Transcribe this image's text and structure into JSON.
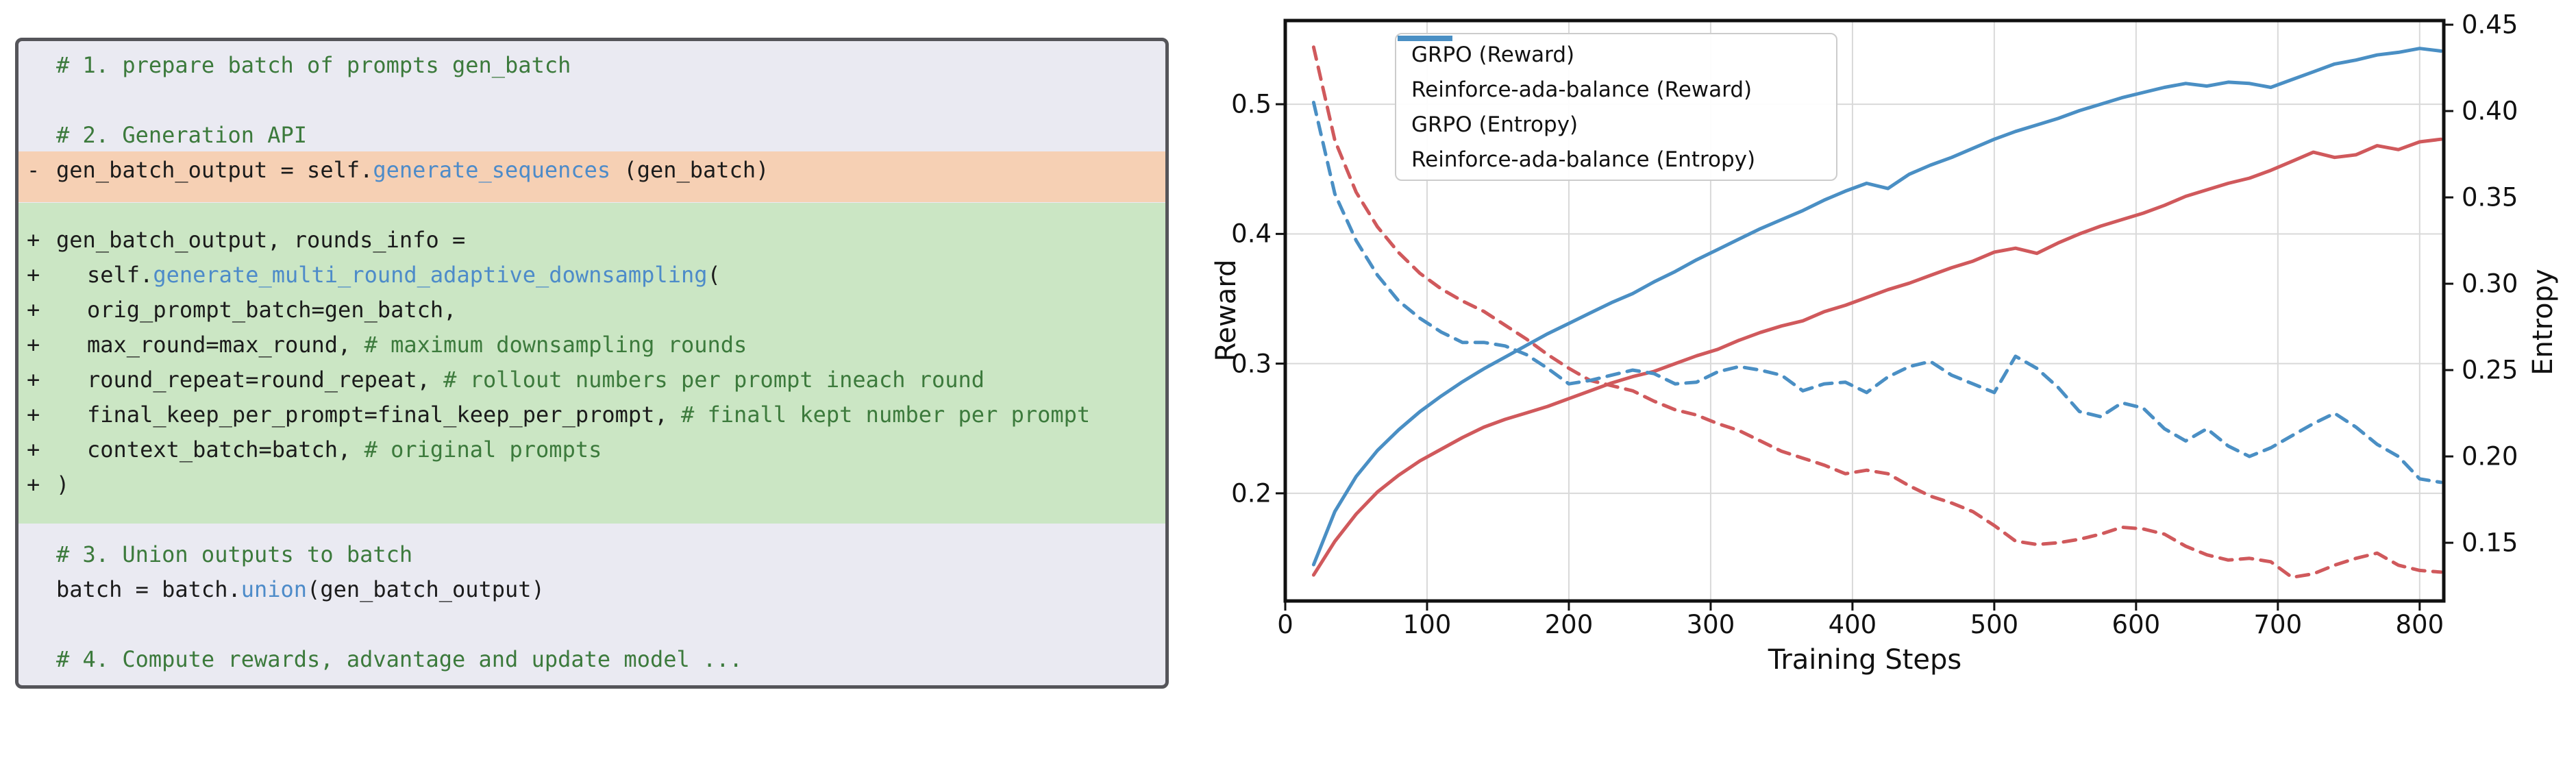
{
  "code_panel": {
    "colors": {
      "panel_bg": "#eaeaf2",
      "border": "#55555a",
      "removed_bg": "#f6d0b4",
      "added_bg": "#cbe6c4",
      "comment": "#3c7a3c",
      "code": "#1b1b1b",
      "method": "#4d8bc9"
    },
    "lines": [
      {
        "marker": "",
        "bg": "plain",
        "indent": 0,
        "segments": [
          [
            "comment",
            "# 1. prepare batch of prompts gen_batch"
          ]
        ]
      },
      {
        "marker": "",
        "bg": "plain",
        "indent": 0,
        "segments": []
      },
      {
        "marker": "",
        "bg": "plain",
        "indent": 0,
        "segments": [
          [
            "comment",
            "# 2. Generation API"
          ]
        ]
      },
      {
        "marker": "-",
        "bg": "removed",
        "indent": 0,
        "segments": [
          [
            "code",
            "gen_batch_output = self."
          ],
          [
            "fn",
            "generate_sequences"
          ],
          [
            "code",
            " (gen_batch)"
          ]
        ]
      },
      {
        "marker": "",
        "bg": "added",
        "indent": 0,
        "segments": []
      },
      {
        "marker": "+",
        "bg": "added",
        "indent": 0,
        "segments": [
          [
            "code",
            "gen_batch_output, rounds_info ="
          ]
        ]
      },
      {
        "marker": "+",
        "bg": "added",
        "indent": 1,
        "segments": [
          [
            "code",
            "self."
          ],
          [
            "fn",
            "generate_multi_round_adaptive_downsampling"
          ],
          [
            "code",
            "("
          ]
        ]
      },
      {
        "marker": "+",
        "bg": "added",
        "indent": 1,
        "segments": [
          [
            "code",
            "orig_prompt_batch=gen_batch,"
          ]
        ]
      },
      {
        "marker": "+",
        "bg": "added",
        "indent": 1,
        "segments": [
          [
            "code",
            "max_round=max_round, "
          ],
          [
            "comment",
            "# maximum downsampling rounds"
          ]
        ]
      },
      {
        "marker": "+",
        "bg": "added",
        "indent": 1,
        "segments": [
          [
            "code",
            "round_repeat=round_repeat, "
          ],
          [
            "comment",
            "# rollout numbers per prompt ineach round"
          ]
        ]
      },
      {
        "marker": "+",
        "bg": "added",
        "indent": 1,
        "segments": [
          [
            "code",
            "final_keep_per_prompt=final_keep_per_prompt, "
          ],
          [
            "comment",
            "# finall kept number per prompt"
          ]
        ]
      },
      {
        "marker": "+",
        "bg": "added",
        "indent": 1,
        "segments": [
          [
            "code",
            "context_batch=batch, "
          ],
          [
            "comment",
            "# original prompts"
          ]
        ]
      },
      {
        "marker": "+",
        "bg": "added",
        "indent": 0,
        "segments": [
          [
            "code",
            ")"
          ]
        ]
      },
      {
        "marker": "",
        "bg": "added",
        "indent": 0,
        "segments": []
      },
      {
        "marker": "",
        "bg": "plain",
        "indent": 0,
        "segments": [
          [
            "comment",
            "# 3. Union outputs to batch"
          ]
        ]
      },
      {
        "marker": "",
        "bg": "plain",
        "indent": 0,
        "segments": [
          [
            "code",
            "batch = batch."
          ],
          [
            "fn",
            "union"
          ],
          [
            "code",
            "(gen_batch_output)"
          ]
        ]
      },
      {
        "marker": "",
        "bg": "plain",
        "indent": 0,
        "segments": []
      },
      {
        "marker": "",
        "bg": "plain",
        "indent": 0,
        "segments": [
          [
            "comment",
            "# 4. Compute rewards, advantage and update model ..."
          ]
        ]
      }
    ]
  },
  "chart_data": {
    "type": "line",
    "title": "",
    "xlabel": "Training Steps",
    "ylabel_left": "Reward",
    "ylabel_right": "Entropy",
    "xlim": [
      0,
      817
    ],
    "ylim_left": [
      0.117,
      0.5645
    ],
    "ylim_right": [
      0.1163,
      0.4524
    ],
    "grid": true,
    "legend_position": "upper left",
    "colors": {
      "red": "#d0595c",
      "blue": "#4a8fc4",
      "grid": "#d9d9d9",
      "spine": "#111111"
    },
    "x_ticks": {
      "values": [
        0,
        100,
        200,
        300,
        400,
        500,
        600,
        700,
        800
      ],
      "labels": [
        "0",
        "100",
        "200",
        "300",
        "400",
        "500",
        "600",
        "700",
        "800"
      ]
    },
    "y_ticks_left": {
      "values": [
        0.2,
        0.3,
        0.4,
        0.5
      ],
      "labels": [
        "0.2",
        "0.3",
        "0.4",
        "0.5"
      ]
    },
    "y_ticks_right": {
      "values": [
        0.15,
        0.2,
        0.25,
        0.3,
        0.35,
        0.4,
        0.45
      ],
      "labels": [
        "0.15",
        "0.20",
        "0.25",
        "0.30",
        "0.35",
        "0.40",
        "0.45"
      ]
    },
    "x": [
      20,
      35,
      50,
      65,
      80,
      95,
      110,
      125,
      140,
      155,
      170,
      185,
      200,
      215,
      230,
      245,
      260,
      275,
      290,
      305,
      320,
      335,
      350,
      365,
      380,
      395,
      410,
      425,
      440,
      455,
      470,
      485,
      500,
      515,
      530,
      545,
      560,
      575,
      590,
      605,
      620,
      635,
      650,
      665,
      680,
      695,
      710,
      725,
      740,
      755,
      770,
      785,
      800,
      815
    ],
    "series": [
      {
        "name": "GRPO (Reward)",
        "axis": "left",
        "style": "solid",
        "color": "#d0595c",
        "values": [
          0.137,
          0.163,
          0.184,
          0.201,
          0.214,
          0.225,
          0.234,
          0.243,
          0.251,
          0.257,
          0.262,
          0.267,
          0.273,
          0.279,
          0.285,
          0.29,
          0.294,
          0.3,
          0.306,
          0.311,
          0.318,
          0.324,
          0.329,
          0.333,
          0.34,
          0.345,
          0.351,
          0.357,
          0.362,
          0.368,
          0.374,
          0.379,
          0.386,
          0.389,
          0.385,
          0.393,
          0.4,
          0.406,
          0.411,
          0.416,
          0.422,
          0.429,
          0.434,
          0.439,
          0.443,
          0.449,
          0.456,
          0.463,
          0.459,
          0.461,
          0.468,
          0.465,
          0.471,
          0.473
        ]
      },
      {
        "name": "Reinforce-ada-balance (Reward)",
        "axis": "left",
        "style": "solid",
        "color": "#4a8fc4",
        "values": [
          0.145,
          0.186,
          0.213,
          0.233,
          0.249,
          0.263,
          0.275,
          0.286,
          0.296,
          0.305,
          0.314,
          0.323,
          0.331,
          0.339,
          0.347,
          0.354,
          0.363,
          0.371,
          0.38,
          0.388,
          0.396,
          0.404,
          0.411,
          0.418,
          0.426,
          0.433,
          0.439,
          0.435,
          0.446,
          0.453,
          0.459,
          0.466,
          0.473,
          0.479,
          0.484,
          0.489,
          0.495,
          0.5,
          0.505,
          0.509,
          0.513,
          0.516,
          0.514,
          0.517,
          0.516,
          0.513,
          0.519,
          0.525,
          0.531,
          0.534,
          0.538,
          0.54,
          0.543,
          0.541
        ]
      },
      {
        "name": "GRPO (Entropy)",
        "axis": "right",
        "style": "dashed",
        "color": "#d0595c",
        "values": [
          0.437,
          0.383,
          0.353,
          0.333,
          0.318,
          0.306,
          0.297,
          0.29,
          0.284,
          0.276,
          0.268,
          0.259,
          0.251,
          0.244,
          0.241,
          0.238,
          0.232,
          0.227,
          0.224,
          0.219,
          0.215,
          0.209,
          0.203,
          0.199,
          0.195,
          0.19,
          0.192,
          0.19,
          0.183,
          0.177,
          0.173,
          0.168,
          0.16,
          0.151,
          0.149,
          0.15,
          0.152,
          0.155,
          0.159,
          0.158,
          0.155,
          0.148,
          0.143,
          0.14,
          0.141,
          0.139,
          0.13,
          0.132,
          0.137,
          0.141,
          0.144,
          0.137,
          0.134,
          0.133
        ]
      },
      {
        "name": "Reinforce-ada-balance (Entropy)",
        "axis": "right",
        "style": "dashed",
        "color": "#4a8fc4",
        "values": [
          0.405,
          0.352,
          0.325,
          0.305,
          0.29,
          0.28,
          0.272,
          0.266,
          0.266,
          0.264,
          0.259,
          0.251,
          0.242,
          0.244,
          0.247,
          0.25,
          0.248,
          0.242,
          0.243,
          0.249,
          0.252,
          0.25,
          0.247,
          0.238,
          0.242,
          0.243,
          0.237,
          0.246,
          0.252,
          0.255,
          0.247,
          0.242,
          0.237,
          0.258,
          0.251,
          0.24,
          0.226,
          0.223,
          0.231,
          0.228,
          0.216,
          0.209,
          0.216,
          0.206,
          0.2,
          0.205,
          0.212,
          0.219,
          0.225,
          0.217,
          0.207,
          0.2,
          0.187,
          0.185
        ]
      }
    ]
  }
}
